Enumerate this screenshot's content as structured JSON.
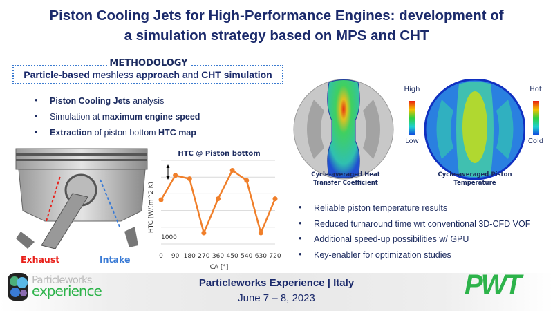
{
  "title": {
    "line1": "Piston Cooling Jets for High-Performance Engines: development of",
    "line2": "a simulation strategy based on MPS and CHT"
  },
  "methodology": {
    "label": "METHODOLOGY",
    "parts": [
      {
        "text": "Particle-based",
        "bold": true
      },
      {
        "text": " meshless ",
        "bold": false
      },
      {
        "text": "approach",
        "bold": true
      },
      {
        "text": " and ",
        "bold": false
      },
      {
        "text": "CHT simulation",
        "bold": true
      }
    ]
  },
  "left_bullets": [
    [
      {
        "text": "Piston Cooling Jets",
        "bold": true
      },
      {
        "text": " analysis",
        "bold": false
      }
    ],
    [
      {
        "text": "Simulation at ",
        "bold": false
      },
      {
        "text": "maximum engine speed",
        "bold": true
      }
    ],
    [
      {
        "text": "Extraction",
        "bold": true
      },
      {
        "text": " of piston bottom ",
        "bold": false
      },
      {
        "text": "HTC map",
        "bold": true
      }
    ]
  ],
  "piston_labels": {
    "exhaust": "Exhaust",
    "intake": "Intake",
    "exhaust_color": "#e8201a",
    "intake_color": "#3a7bd5"
  },
  "chart_data": {
    "type": "line",
    "title": "HTC @ Piston bottom",
    "xlabel": "CA [°]",
    "ylabel": "HTC [W/(m^2 K)",
    "x": [
      0,
      90,
      180,
      270,
      360,
      450,
      540,
      630,
      720
    ],
    "y": [
      2.64,
      4.1,
      3.9,
      0.66,
      2.7,
      4.4,
      3.8,
      0.66,
      2.7
    ],
    "ylim": [
      0,
      5
    ],
    "xticks": [
      "0",
      "90",
      "180",
      "270",
      "360",
      "450",
      "540",
      "630",
      "720"
    ],
    "ytick_label": "1000",
    "grid": true,
    "color": "#f07f2a"
  },
  "contours": [
    {
      "caption": "Cycle-averaged Heat Transfer Coefficient",
      "high": "High",
      "low": "Low"
    },
    {
      "caption": "Cycle-averaged Piston Temperature",
      "high": "Hot",
      "low": "Cold"
    }
  ],
  "right_bullets": [
    "Reliable piston temperature results",
    "Reduced turnaround time wrt conventional 3D-CFD VOF",
    "Additional speed-up possibilities w/ GPU",
    "Key-enabler for optimization studies"
  ],
  "footer": {
    "event": "Particleworks Experience | Italy",
    "dates": "June 7 – 8, 2023",
    "logo_left": "Particleworks experience",
    "logo_right": "PWT",
    "logo_green": "#2db34a"
  }
}
